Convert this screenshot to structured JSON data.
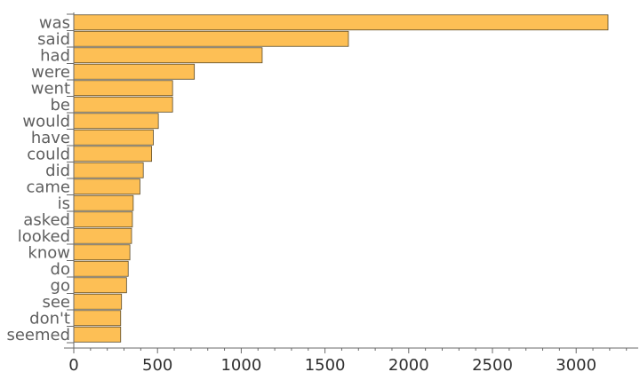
{
  "chart_data": {
    "type": "bar",
    "orientation": "horizontal",
    "categories": [
      "was",
      "said",
      "had",
      "were",
      "went",
      "be",
      "would",
      "have",
      "could",
      "did",
      "came",
      "is",
      "asked",
      "looked",
      "know",
      "do",
      "go",
      "see",
      "don't",
      "seemed"
    ],
    "values": [
      3190,
      1640,
      1125,
      720,
      590,
      590,
      505,
      475,
      465,
      415,
      395,
      355,
      350,
      345,
      335,
      325,
      315,
      285,
      280,
      280
    ],
    "title": "",
    "xlabel": "",
    "ylabel": "",
    "xlim": [
      0,
      3350
    ],
    "x_ticks": [
      0,
      500,
      1000,
      1500,
      2000,
      2500,
      3000
    ],
    "x_tick_labels": [
      "0",
      "500",
      "1000",
      "1500",
      "2000",
      "2500",
      "3000"
    ],
    "bar_color": "#fdbf55",
    "bar_edge_color": "#5a4a2a",
    "grid": false,
    "legend": "none"
  }
}
